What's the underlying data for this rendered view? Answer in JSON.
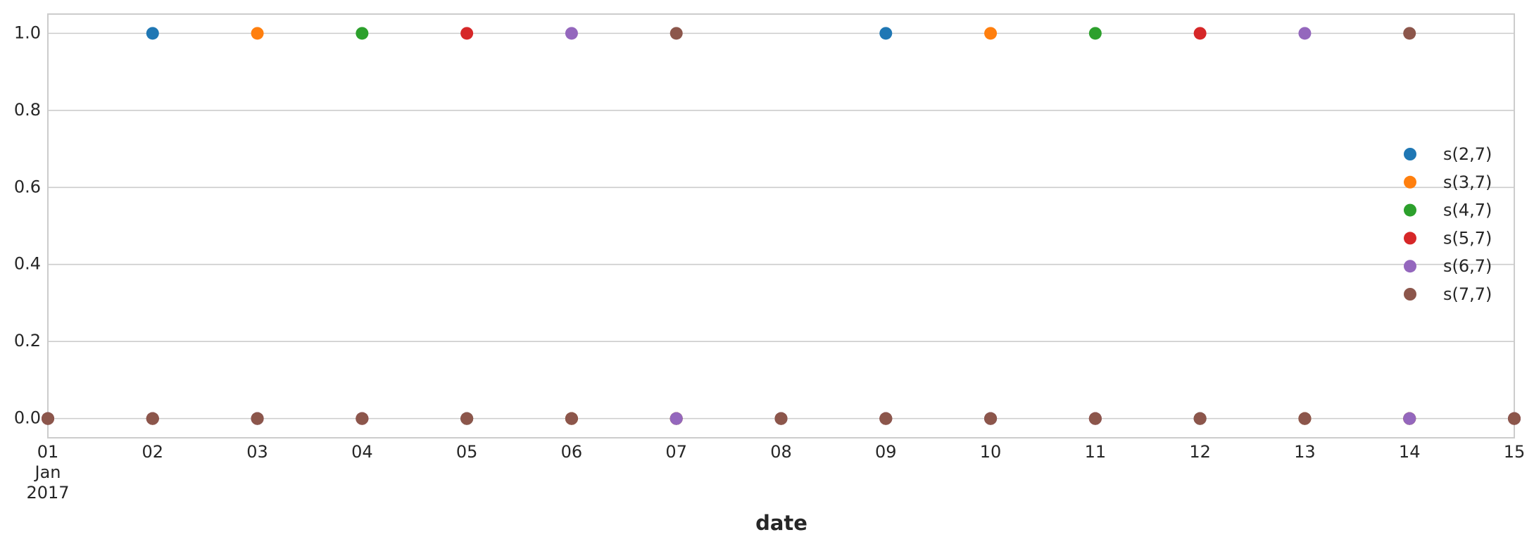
{
  "chart_data": {
    "type": "scatter",
    "x_label": "date",
    "x": [
      "2017-01-01",
      "2017-01-02",
      "2017-01-03",
      "2017-01-04",
      "2017-01-05",
      "2017-01-06",
      "2017-01-07",
      "2017-01-08",
      "2017-01-09",
      "2017-01-10",
      "2017-01-11",
      "2017-01-12",
      "2017-01-13",
      "2017-01-14",
      "2017-01-15"
    ],
    "series": [
      {
        "name": "s(2,7)",
        "color": "#1f77b4",
        "values": [
          0,
          1,
          0,
          0,
          0,
          0,
          0,
          0,
          1,
          0,
          0,
          0,
          0,
          0,
          0
        ]
      },
      {
        "name": "s(3,7)",
        "color": "#ff7f0e",
        "values": [
          0,
          0,
          1,
          0,
          0,
          0,
          0,
          0,
          0,
          1,
          0,
          0,
          0,
          0,
          0
        ]
      },
      {
        "name": "s(4,7)",
        "color": "#2ca02c",
        "values": [
          0,
          0,
          0,
          1,
          0,
          0,
          0,
          0,
          0,
          0,
          1,
          0,
          0,
          0,
          0
        ]
      },
      {
        "name": "s(5,7)",
        "color": "#d62728",
        "values": [
          0,
          0,
          0,
          0,
          1,
          0,
          0,
          0,
          0,
          0,
          0,
          1,
          0,
          0,
          0
        ]
      },
      {
        "name": "s(6,7)",
        "color": "#9467bd",
        "values": [
          0,
          0,
          0,
          0,
          0,
          1,
          0,
          0,
          0,
          0,
          0,
          0,
          1,
          0,
          0
        ]
      },
      {
        "name": "s(7,7)",
        "color": "#8c564b",
        "values": [
          0,
          0,
          0,
          0,
          0,
          0,
          1,
          0,
          0,
          0,
          0,
          0,
          0,
          1,
          0
        ]
      }
    ],
    "xlim": [
      "2017-01-01",
      "2017-01-15"
    ],
    "xticks": [
      {
        "value": "2017-01-01",
        "label": "01\nJan\n2017"
      },
      {
        "value": "2017-01-02",
        "label": "02"
      },
      {
        "value": "2017-01-03",
        "label": "03"
      },
      {
        "value": "2017-01-04",
        "label": "04"
      },
      {
        "value": "2017-01-05",
        "label": "05"
      },
      {
        "value": "2017-01-06",
        "label": "06"
      },
      {
        "value": "2017-01-07",
        "label": "07"
      },
      {
        "value": "2017-01-08",
        "label": "08"
      },
      {
        "value": "2017-01-09",
        "label": "09"
      },
      {
        "value": "2017-01-10",
        "label": "10"
      },
      {
        "value": "2017-01-11",
        "label": "11"
      },
      {
        "value": "2017-01-12",
        "label": "12"
      },
      {
        "value": "2017-01-13",
        "label": "13"
      },
      {
        "value": "2017-01-14",
        "label": "14"
      },
      {
        "value": "2017-01-15",
        "label": "15"
      }
    ],
    "ylim": [
      -0.05,
      1.05
    ],
    "yticks": [
      {
        "value": 0,
        "label": "0.0"
      },
      0.2,
      0.4,
      0.6,
      0.8,
      {
        "value": 1,
        "label": "1.0"
      }
    ],
    "grid": true,
    "legend": "right"
  }
}
